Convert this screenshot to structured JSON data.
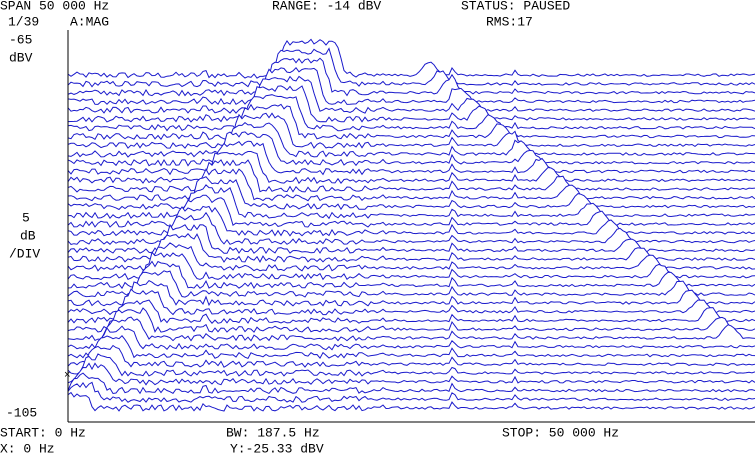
{
  "header": {
    "span": "SPAN  50 000 Hz",
    "range": "RANGE: -14 dBV",
    "status": "STATUS: PAUSED",
    "record": "1/39",
    "mode": "A:MAG",
    "rms": "RMS:17"
  },
  "axis": {
    "top_value": "-65",
    "top_unit": "dBV",
    "scale_value": "5",
    "scale_unit": "dB",
    "scale_per": "/DIV",
    "bottom_value": "-105"
  },
  "footer": {
    "start": "START: 0 Hz",
    "bw": "BW: 187.5 Hz",
    "stop": "STOP: 50 000 Hz",
    "x_readout": "X: 0 Hz",
    "y_readout": "Y:-25.33 dBV"
  }
}
